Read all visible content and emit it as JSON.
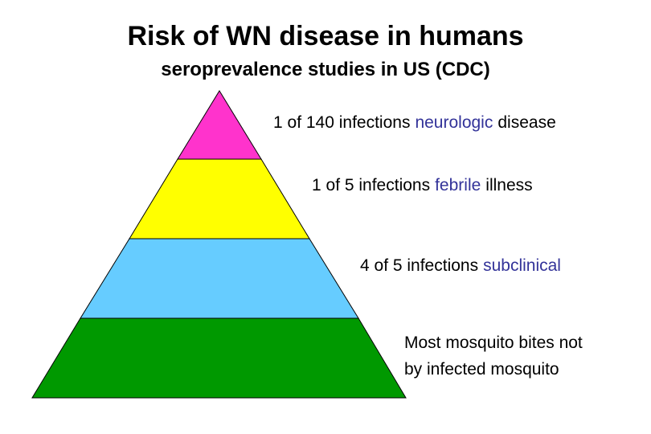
{
  "header": {
    "title": "Risk of WN disease in humans",
    "subtitle": "seroprevalence studies in US (CDC)"
  },
  "levels": [
    {
      "parts": [
        "1 of 140 infections",
        "neurologic",
        "disease"
      ]
    },
    {
      "parts": [
        "1 of 5 infections",
        "febrile",
        "illness"
      ]
    },
    {
      "parts": [
        "4 of 5 infections",
        "subclinical"
      ]
    },
    {
      "lines": [
        "Most mosquito bites not",
        "by infected mosquito"
      ]
    }
  ]
}
